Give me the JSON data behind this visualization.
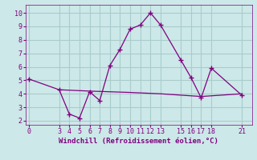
{
  "xlabel": "Windchill (Refroidissement éolien,°C)",
  "bg_color": "#cce8e8",
  "grid_color": "#aacccc",
  "line_color": "#800080",
  "line1_x": [
    0,
    3,
    4,
    5,
    6,
    7,
    8,
    9,
    10,
    11,
    12,
    13,
    15,
    16,
    17,
    18,
    21
  ],
  "line1_y": [
    5.1,
    4.3,
    2.5,
    2.2,
    4.15,
    3.5,
    6.1,
    7.3,
    8.8,
    9.1,
    10.0,
    9.1,
    6.5,
    5.2,
    3.7,
    5.9,
    3.9
  ],
  "line2_x": [
    3,
    6,
    10,
    13,
    17,
    21
  ],
  "line2_y": [
    4.3,
    4.2,
    4.1,
    4.0,
    3.8,
    4.0
  ],
  "xticks": [
    0,
    3,
    4,
    5,
    6,
    7,
    8,
    9,
    10,
    11,
    12,
    13,
    15,
    16,
    17,
    18,
    21
  ],
  "yticks": [
    2,
    3,
    4,
    5,
    6,
    7,
    8,
    9,
    10
  ],
  "xlim": [
    -0.3,
    22.0
  ],
  "ylim": [
    1.7,
    10.6
  ],
  "axis_fontsize": 6.5,
  "tick_fontsize": 6.0
}
